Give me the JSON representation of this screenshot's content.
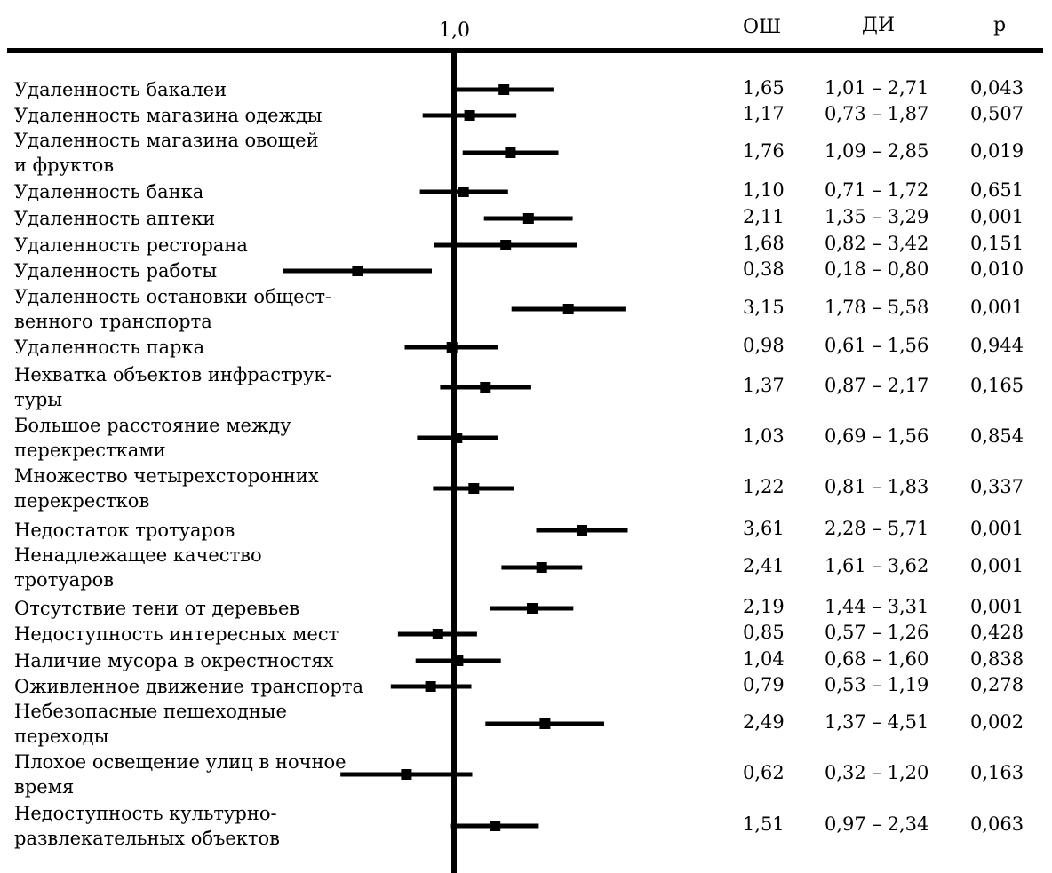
{
  "chart_data": {
    "type": "forest",
    "reference_line_label": "1,0",
    "columns": [
      "ОШ",
      "ДИ",
      "p"
    ],
    "rows": [
      {
        "label": [
          "Удаленность бакалеи"
        ],
        "or": "1,65",
        "ci": "1,01 – 2,71",
        "p": "0,043",
        "or_value": 1.65,
        "lo": 1.01,
        "hi": 2.71
      },
      {
        "label": [
          "Удаленность магазина одежды"
        ],
        "or": "1,17",
        "ci": "0,73 – 1,87",
        "p": "0,507",
        "or_value": 1.17,
        "lo": 0.73,
        "hi": 1.87
      },
      {
        "label": [
          "Удаленность магазина овощей",
          "и фруктов"
        ],
        "or": "1,76",
        "ci": "1,09 – 2,85",
        "p": "0,019",
        "or_value": 1.76,
        "lo": 1.09,
        "hi": 2.85
      },
      {
        "label": [
          "Удаленность банка"
        ],
        "or": "1,10",
        "ci": "0,71 – 1,72",
        "p": "0,651",
        "or_value": 1.1,
        "lo": 0.71,
        "hi": 1.72
      },
      {
        "label": [
          "Удаленность аптеки"
        ],
        "or": "2,11",
        "ci": "1,35 – 3,29",
        "p": "0,001",
        "or_value": 2.11,
        "lo": 1.35,
        "hi": 3.29
      },
      {
        "label": [
          "Удаленность ресторана"
        ],
        "or": "1,68",
        "ci": "0,82 – 3,42",
        "p": "0,151",
        "or_value": 1.68,
        "lo": 0.82,
        "hi": 3.42
      },
      {
        "label": [
          "Удаленность работы"
        ],
        "or": "0,38",
        "ci": "0,18 – 0,80",
        "p": "0,010",
        "or_value": 0.38,
        "lo": 0.18,
        "hi": 0.8
      },
      {
        "label": [
          "Удаленность остановки общест-",
          "венного транспорта"
        ],
        "or": "3,15",
        "ci": "1,78 – 5,58",
        "p": "0,001",
        "or_value": 3.15,
        "lo": 1.78,
        "hi": 5.58
      },
      {
        "label": [
          "Удаленность парка"
        ],
        "or": "0,98",
        "ci": "0,61 – 1,56",
        "p": "0,944",
        "or_value": 0.98,
        "lo": 0.61,
        "hi": 1.56
      },
      {
        "label": [
          "Нехватка объектов инфраструк-",
          "туры"
        ],
        "or": "1,37",
        "ci": "0,87 – 2,17",
        "p": "0,165",
        "or_value": 1.37,
        "lo": 0.87,
        "hi": 2.17
      },
      {
        "label": [
          "Большое расстояние между",
          "перекрестками"
        ],
        "or": "1,03",
        "ci": "0,69 – 1,56",
        "p": "0,854",
        "or_value": 1.03,
        "lo": 0.69,
        "hi": 1.56
      },
      {
        "label": [
          "Множество четырехсторонних",
          "перекрестков"
        ],
        "or": "1,22",
        "ci": "0,81 – 1,83",
        "p": "0,337",
        "or_value": 1.22,
        "lo": 0.81,
        "hi": 1.83
      },
      {
        "label": [
          "Недостаток тротуаров"
        ],
        "or": "3,61",
        "ci": "2,28 – 5,71",
        "p": "0,001",
        "or_value": 3.61,
        "lo": 2.28,
        "hi": 5.71
      },
      {
        "label": [
          "Ненадлежащее качество",
          "тротуаров"
        ],
        "or": "2,41",
        "ci": "1,61 – 3,62",
        "p": "0,001",
        "or_value": 2.41,
        "lo": 1.61,
        "hi": 3.62
      },
      {
        "label": [
          "Отсутствие тени от деревьев"
        ],
        "or": "2,19",
        "ci": "1,44 – 3,31",
        "p": "0,001",
        "or_value": 2.19,
        "lo": 1.44,
        "hi": 3.31
      },
      {
        "label": [
          "Недоступность интересных мест"
        ],
        "or": "0,85",
        "ci": "0,57 – 1,26",
        "p": "0,428",
        "or_value": 0.85,
        "lo": 0.57,
        "hi": 1.26
      },
      {
        "label": [
          "Наличие мусора в окрестностях"
        ],
        "or": "1,04",
        "ci": "0,68 – 1,60",
        "p": "0,838",
        "or_value": 1.04,
        "lo": 0.68,
        "hi": 1.6
      },
      {
        "label": [
          "Оживленное движение транспорта"
        ],
        "or": "0,79",
        "ci": "0,53 – 1,19",
        "p": "0,278",
        "or_value": 0.79,
        "lo": 0.53,
        "hi": 1.19
      },
      {
        "label": [
          "Небезопасные пешеходные",
          "переходы"
        ],
        "or": "2,49",
        "ci": "1,37 – 4,51",
        "p": "0,002",
        "or_value": 2.49,
        "lo": 1.37,
        "hi": 4.51
      },
      {
        "label": [
          "Плохое освещение улиц в ночное",
          "время"
        ],
        "or": "0,62",
        "ci": "0,32 – 1,20",
        "p": "0,163",
        "or_value": 0.62,
        "lo": 0.32,
        "hi": 1.2
      },
      {
        "label": [
          "Недоступность культурно-",
          "развлекательных объектов"
        ],
        "or": "1,51",
        "ci": "0,97 – 2,34",
        "p": "0,063",
        "or_value": 1.51,
        "lo": 0.97,
        "hi": 2.34
      }
    ]
  }
}
